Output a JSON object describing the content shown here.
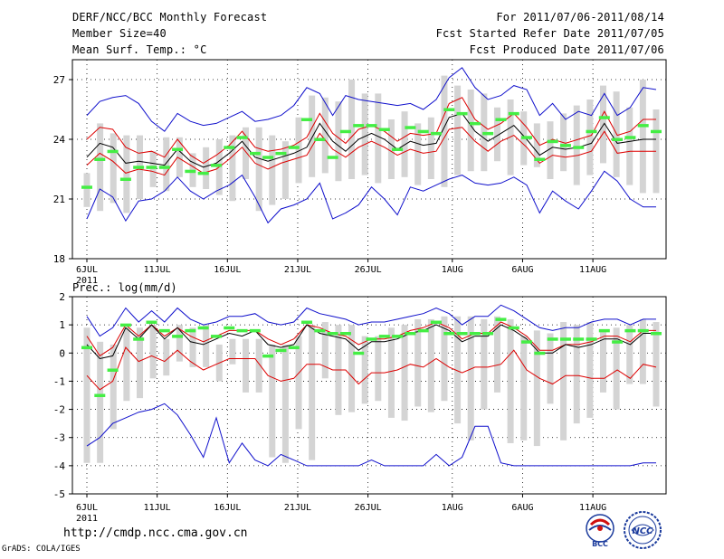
{
  "header": {
    "title": "DERF/NCC/BCC Monthly Forecast",
    "member_size": "Member Size=40",
    "variable": "Mean Surf. Temp.: °C",
    "period": "For 2011/07/06-2011/08/14",
    "start_date": "Fcst Started Refer Date 2011/07/05",
    "produced_date": "Fcst Produced Date 2011/07/06"
  },
  "footer": {
    "url": "http://cmdp.ncc.cma.gov.cn",
    "credit": "GrADS: COLA/IGES",
    "logo_left": "BCC",
    "logo_right": "NCC"
  },
  "colors": {
    "range": "#1010cc",
    "spread": "#dd0000",
    "ensemble_mean": "#000000",
    "members_box": "#d4d4d4",
    "observation": "#44ee44"
  },
  "chart_data": [
    {
      "type": "line",
      "title": "Mean Surf. Temp.: °C",
      "ylim": [
        18,
        28
      ],
      "yticks": [
        18,
        21,
        24,
        27
      ],
      "xtick_labels": [
        "6JUL",
        "11JUL",
        "16JUL",
        "21JUL",
        "26JUL",
        "1AUG",
        "6AUG",
        "11AUG"
      ],
      "xtick_days": [
        1,
        6,
        11,
        16,
        21,
        27,
        32,
        37
      ],
      "year_label": "2011",
      "days": 40,
      "series": [
        {
          "name": "max",
          "values": [
            25.2,
            25.9,
            26.1,
            26.2,
            25.8,
            24.9,
            24.4,
            25.3,
            24.9,
            24.7,
            24.8,
            25.1,
            25.4,
            24.9,
            25.0,
            25.2,
            25.7,
            26.6,
            26.3,
            25.2,
            26.2,
            26.0,
            25.9,
            25.8,
            25.7,
            25.8,
            25.5,
            26.0,
            27.1,
            27.6,
            26.6,
            26.0,
            26.2,
            26.7,
            26.5,
            25.2,
            25.8,
            25.0,
            25.4,
            25.2,
            26.3,
            25.2,
            25.6,
            26.6,
            26.5
          ]
        },
        {
          "name": "upper",
          "values": [
            24.0,
            24.6,
            24.5,
            23.6,
            23.3,
            23.4,
            23.1,
            24.0,
            23.2,
            22.8,
            23.2,
            23.7,
            24.4,
            23.6,
            23.4,
            23.5,
            23.7,
            24.1,
            25.3,
            24.3,
            23.8,
            24.5,
            24.7,
            24.4,
            23.9,
            24.3,
            24.2,
            24.3,
            25.8,
            26.1,
            25.0,
            24.5,
            24.8,
            25.3,
            24.6,
            23.7,
            24.0,
            23.8,
            24.0,
            24.2,
            25.4,
            24.2,
            24.4,
            25.0,
            25.0
          ]
        },
        {
          "name": "mean",
          "values": [
            23.1,
            23.8,
            23.6,
            22.8,
            22.9,
            22.8,
            22.7,
            23.5,
            22.9,
            22.6,
            22.8,
            23.3,
            23.9,
            23.1,
            22.9,
            23.1,
            23.3,
            23.6,
            24.8,
            23.9,
            23.4,
            24.0,
            24.3,
            24.0,
            23.5,
            23.9,
            23.7,
            23.8,
            25.1,
            25.3,
            24.4,
            23.9,
            24.3,
            24.7,
            24.0,
            23.2,
            23.6,
            23.5,
            23.6,
            23.8,
            24.8,
            23.8,
            23.9,
            24.0,
            24.0
          ]
        },
        {
          "name": "lower",
          "values": [
            22.7,
            23.3,
            22.9,
            22.3,
            22.5,
            22.4,
            22.2,
            23.1,
            22.7,
            22.3,
            22.5,
            23.0,
            23.6,
            22.8,
            22.5,
            22.8,
            23.0,
            23.2,
            24.3,
            23.5,
            23.1,
            23.6,
            23.9,
            23.6,
            23.2,
            23.5,
            23.3,
            23.4,
            24.5,
            24.6,
            23.9,
            23.4,
            23.9,
            24.2,
            23.6,
            22.8,
            23.2,
            23.1,
            23.2,
            23.4,
            24.4,
            23.3,
            23.4,
            23.4,
            23.4
          ]
        },
        {
          "name": "min",
          "values": [
            20.0,
            21.5,
            21.1,
            19.9,
            20.9,
            21.0,
            21.4,
            22.1,
            21.4,
            21.0,
            21.4,
            21.7,
            22.2,
            21.1,
            19.8,
            20.5,
            20.7,
            21.0,
            21.8,
            20.0,
            20.3,
            20.7,
            21.6,
            21.0,
            20.2,
            21.6,
            21.4,
            21.7,
            22.0,
            22.2,
            21.8,
            21.7,
            21.8,
            22.1,
            21.7,
            20.3,
            21.4,
            20.9,
            20.5,
            21.4,
            22.4,
            21.9,
            21.0,
            20.6,
            20.6
          ]
        }
      ],
      "members_box": {
        "low": [
          20.6,
          20.4,
          20.8,
          20.3,
          21.0,
          21.6,
          21.4,
          22.1,
          21.6,
          21.5,
          21.2,
          20.9,
          22.0,
          20.4,
          20.7,
          21.0,
          21.8,
          22.1,
          22.3,
          21.9,
          22.0,
          22.2,
          21.8,
          22.0,
          22.1,
          21.7,
          22.0,
          21.6,
          22.2,
          22.4,
          22.4,
          22.9,
          22.2,
          22.7,
          22.6,
          22.0,
          22.4,
          21.7,
          22.2,
          22.8,
          22.1,
          21.7,
          21.3,
          21.3
        ],
        "high": [
          22.3,
          24.8,
          24.3,
          24.2,
          24.2,
          23.4,
          24.1,
          24.1,
          23.3,
          23.6,
          24.0,
          24.2,
          24.6,
          24.6,
          24.2,
          23.9,
          25.1,
          26.2,
          26.1,
          25.9,
          27.0,
          26.3,
          26.3,
          25.0,
          25.4,
          24.8,
          25.1,
          27.2,
          26.7,
          26.5,
          26.3,
          25.6,
          26.0,
          25.4,
          24.8,
          24.9,
          25.3,
          25.7,
          26.0,
          26.7,
          26.4,
          25.6,
          27.0,
          25.5
        ]
      },
      "observation": [
        21.6,
        23.0,
        23.4,
        22.0,
        22.6,
        22.6,
        22.6,
        23.5,
        22.4,
        22.3,
        22.7,
        23.6,
        24.1,
        23.3,
        23.1,
        23.3,
        23.6,
        25.0,
        24.0,
        23.1,
        24.4,
        24.7,
        24.7,
        24.5,
        23.5,
        24.6,
        24.4,
        24.3,
        25.5,
        25.3,
        24.8,
        24.3,
        25.0,
        25.3,
        24.1,
        23.0,
        23.9,
        23.7,
        23.6,
        24.4,
        25.1,
        24.0,
        24.1,
        24.7,
        24.4
      ]
    },
    {
      "type": "line",
      "title": "Prec.: log(mm/d)",
      "ylim": [
        -5,
        2
      ],
      "yticks": [
        -5,
        -4,
        -3,
        -2,
        -1,
        0,
        1,
        2
      ],
      "xtick_labels": [
        "6JUL",
        "11JUL",
        "16JUL",
        "21JUL",
        "26JUL",
        "1AUG",
        "6AUG",
        "11AUG"
      ],
      "xtick_days": [
        1,
        6,
        11,
        16,
        21,
        27,
        32,
        37
      ],
      "year_label": "2011",
      "days": 40,
      "series": [
        {
          "name": "max",
          "values": [
            1.3,
            0.6,
            0.9,
            1.6,
            1.1,
            1.5,
            1.1,
            1.6,
            1.2,
            1.0,
            1.1,
            1.3,
            1.3,
            1.4,
            1.1,
            1.0,
            1.1,
            1.6,
            1.4,
            1.3,
            1.2,
            1.0,
            1.1,
            1.1,
            1.2,
            1.3,
            1.4,
            1.6,
            1.4,
            1.0,
            1.3,
            1.3,
            1.7,
            1.5,
            1.2,
            0.9,
            0.8,
            0.9,
            0.9,
            1.1,
            1.2,
            1.2,
            1.0,
            1.2,
            1.2
          ]
        },
        {
          "name": "upper",
          "values": [
            0.6,
            -0.1,
            0.2,
            1.0,
            0.6,
            1.0,
            0.6,
            0.9,
            0.6,
            0.4,
            0.6,
            0.8,
            0.8,
            0.8,
            0.5,
            0.3,
            0.5,
            1.0,
            0.9,
            0.7,
            0.6,
            0.3,
            0.5,
            0.5,
            0.6,
            0.8,
            0.9,
            1.1,
            0.9,
            0.5,
            0.7,
            0.7,
            1.1,
            0.9,
            0.6,
            0.1,
            0.1,
            0.3,
            0.3,
            0.4,
            0.6,
            0.6,
            0.4,
            0.8,
            0.8
          ]
        },
        {
          "name": "mean",
          "values": [
            0.3,
            -0.2,
            -0.1,
            0.9,
            0.5,
            1.0,
            0.5,
            0.9,
            0.4,
            0.3,
            0.5,
            0.7,
            0.6,
            0.8,
            0.3,
            0.2,
            0.3,
            1.0,
            0.7,
            0.6,
            0.5,
            0.1,
            0.4,
            0.4,
            0.5,
            0.7,
            0.8,
            1.0,
            0.8,
            0.4,
            0.6,
            0.6,
            1.0,
            0.8,
            0.5,
            0.0,
            0.0,
            0.3,
            0.2,
            0.3,
            0.5,
            0.5,
            0.3,
            0.7,
            0.7
          ]
        },
        {
          "name": "lower",
          "values": [
            -0.8,
            -1.3,
            -1.0,
            0.2,
            -0.3,
            -0.1,
            -0.3,
            0.1,
            -0.3,
            -0.6,
            -0.4,
            -0.2,
            -0.2,
            -0.2,
            -0.8,
            -1.0,
            -0.9,
            -0.4,
            -0.4,
            -0.6,
            -0.6,
            -1.1,
            -0.7,
            -0.7,
            -0.6,
            -0.4,
            -0.5,
            -0.2,
            -0.5,
            -0.7,
            -0.5,
            -0.5,
            -0.4,
            0.1,
            -0.6,
            -0.9,
            -1.1,
            -0.8,
            -0.8,
            -0.9,
            -0.9,
            -0.6,
            -0.9,
            -0.4,
            -0.5
          ]
        },
        {
          "name": "min",
          "values": [
            -3.3,
            -3.0,
            -2.5,
            -2.3,
            -2.1,
            -2.0,
            -1.8,
            -2.2,
            -2.9,
            -3.7,
            -2.3,
            -3.9,
            -3.2,
            -3.8,
            -4.0,
            -3.6,
            -3.8,
            -4.0,
            -4.0,
            -4.0,
            -4.0,
            -4.0,
            -3.8,
            -4.0,
            -4.0,
            -4.0,
            -4.0,
            -3.6,
            -4.0,
            -3.7,
            -2.6,
            -2.6,
            -3.9,
            -4.0,
            -4.0,
            -4.0,
            -4.0,
            -4.0,
            -4.0,
            -4.0,
            -4.0,
            -4.0,
            -4.0,
            -3.9,
            -3.9
          ]
        }
      ],
      "members_box": {
        "low": [
          -3.9,
          -3.9,
          -2.7,
          -1.7,
          -1.6,
          -0.9,
          -0.8,
          -0.3,
          -0.5,
          -0.5,
          -1.0,
          -0.4,
          -1.4,
          -1.4,
          -3.7,
          -3.9,
          -2.7,
          -3.8,
          -0.9,
          -2.2,
          -2.1,
          -1.8,
          -1.7,
          -2.3,
          -2.4,
          -1.9,
          -2.1,
          -1.7,
          -2.5,
          -3.1,
          -2.0,
          -1.4,
          -3.2,
          -3.1,
          -3.3,
          -1.8,
          -3.1,
          -2.5,
          -2.3,
          -1.4,
          -2.0,
          -1.1,
          -1.1,
          -1.9
        ],
        "high": [
          0.9,
          0.4,
          0.3,
          0.9,
          0.9,
          1.0,
          0.5,
          1.0,
          0.9,
          1.0,
          0.3,
          0.5,
          0.5,
          0.5,
          0.3,
          0.3,
          0.6,
          1.0,
          1.1,
          1.0,
          1.0,
          0.6,
          0.6,
          0.9,
          1.0,
          1.2,
          1.2,
          1.3,
          1.3,
          1.3,
          1.2,
          1.3,
          1.2,
          0.6,
          0.8,
          0.7,
          1.1,
          1.0,
          1.1,
          0.8,
          0.9,
          1.0,
          1.2,
          1.1
        ]
      },
      "observation": [
        0.2,
        -1.5,
        -0.6,
        1.0,
        0.5,
        1.1,
        0.8,
        0.6,
        0.8,
        0.9,
        0.6,
        0.9,
        0.8,
        0.8,
        -0.1,
        0.1,
        0.2,
        1.1,
        0.8,
        0.7,
        0.7,
        0.0,
        0.5,
        0.6,
        0.6,
        0.7,
        0.8,
        1.1,
        0.7,
        0.7,
        0.7,
        0.7,
        1.2,
        0.9,
        0.4,
        0.0,
        0.5,
        0.5,
        0.5,
        0.5,
        0.8,
        0.4,
        0.8,
        0.8,
        0.7
      ]
    }
  ]
}
